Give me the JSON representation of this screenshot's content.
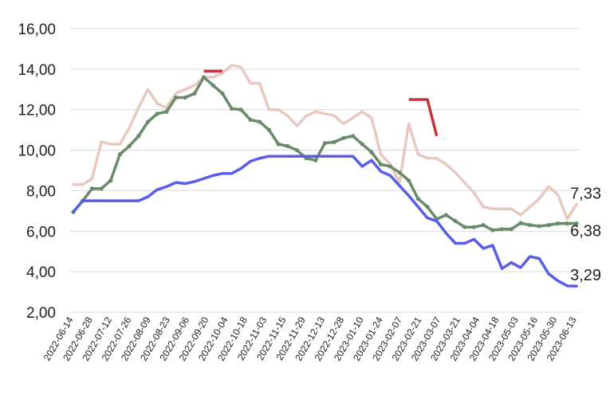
{
  "chart_data": {
    "type": "line",
    "title": "",
    "xlabel": "",
    "ylabel": "",
    "ylim": [
      2,
      16
    ],
    "yticks": [
      "2,00",
      "4,00",
      "6,00",
      "8,00",
      "10,00",
      "12,00",
      "14,00",
      "16,00"
    ],
    "grid": "horizontal",
    "legend": "none",
    "xticks": [
      "2022-06-14",
      "2022-06-28",
      "2022-07-12",
      "2022-07-26",
      "2022-08-09",
      "2022-08-23",
      "2022-09-06",
      "2022-09-20",
      "2022-10-04",
      "2022-10-18",
      "2022-11-03",
      "2022-11-15",
      "2022-11-29",
      "2022-12-13",
      "2022-12-28",
      "2023-01-10",
      "2023-01-24",
      "2023-02-07",
      "2023-02-21",
      "2023-03-07",
      "2023-03-21",
      "2023-04-04",
      "2023-04-18",
      "2023-05-03",
      "2023-05-16",
      "2023-05-30",
      "2023-06-13"
    ],
    "series": [
      {
        "color": "#e8c9c0",
        "markers": false,
        "end_label": "7,33",
        "values": [
          8.3,
          8.3,
          8.6,
          10.4,
          10.3,
          10.3,
          11.1,
          12.1,
          13.0,
          12.3,
          12.1,
          12.8,
          13.0,
          13.2,
          13.6,
          13.6,
          13.8,
          14.2,
          14.1,
          13.3,
          13.3,
          12.0,
          12.0,
          11.7,
          11.2,
          11.7,
          11.9,
          11.8,
          11.7,
          11.3,
          11.6,
          11.9,
          11.6,
          9.8,
          9.3,
          8.4,
          11.3,
          9.8,
          9.6,
          9.6,
          9.3,
          8.9,
          8.4,
          7.9,
          7.2,
          7.1,
          7.1,
          7.1,
          6.8,
          7.2,
          7.6,
          8.2,
          7.8,
          6.6,
          7.33
        ]
      },
      {
        "color": "#6a8a6a",
        "markers": true,
        "end_label": "6,38",
        "values": [
          6.95,
          7.5,
          8.1,
          8.1,
          8.5,
          9.8,
          10.2,
          10.7,
          11.4,
          11.8,
          11.9,
          12.6,
          12.6,
          12.8,
          13.6,
          13.2,
          12.8,
          12.05,
          12.0,
          11.5,
          11.4,
          11.0,
          10.3,
          10.2,
          10.0,
          9.6,
          9.5,
          10.35,
          10.4,
          10.6,
          10.7,
          10.3,
          9.9,
          9.3,
          9.2,
          8.9,
          8.5,
          7.6,
          7.2,
          6.6,
          6.8,
          6.5,
          6.2,
          6.2,
          6.3,
          6.05,
          6.1,
          6.1,
          6.4,
          6.3,
          6.25,
          6.3,
          6.38,
          6.38,
          6.38
        ]
      },
      {
        "color": "#5a5de6",
        "markers": false,
        "end_label": "3,29",
        "values": [
          6.95,
          7.5,
          7.5,
          7.5,
          7.5,
          7.5,
          7.5,
          7.5,
          7.7,
          8.05,
          8.2,
          8.4,
          8.35,
          8.45,
          8.6,
          8.75,
          8.85,
          8.85,
          9.1,
          9.45,
          9.6,
          9.7,
          9.7,
          9.7,
          9.7,
          9.7,
          9.7,
          9.7,
          9.7,
          9.7,
          9.7,
          9.2,
          9.5,
          8.95,
          8.75,
          8.25,
          7.75,
          7.2,
          6.65,
          6.5,
          5.9,
          5.4,
          5.4,
          5.6,
          5.15,
          5.3,
          4.15,
          4.45,
          4.2,
          4.75,
          4.65,
          3.9,
          3.55,
          3.3,
          3.29
        ]
      },
      {
        "color": "#c63340",
        "markers": false,
        "segments": [
          {
            "x": [
              14,
              16
            ],
            "y": [
              13.9,
              13.9
            ]
          },
          {
            "x": [
              36,
              38,
              39
            ],
            "y": [
              12.5,
              12.5,
              10.7
            ]
          }
        ]
      }
    ]
  }
}
